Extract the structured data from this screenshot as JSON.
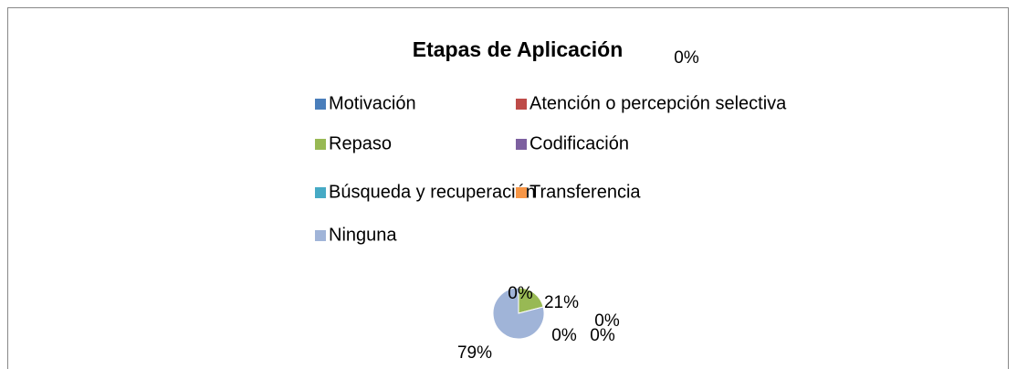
{
  "chart_data": {
    "type": "pie",
    "title": "Etapas de Aplicación",
    "categories": [
      "Motivación",
      "Atención o percepción selectiva",
      "Repaso",
      "Codificación",
      "Búsqueda y recuperación",
      "Transferencia",
      "Ninguna"
    ],
    "values": [
      0,
      0,
      21,
      0,
      0,
      0,
      79
    ],
    "value_labels": [
      "0%",
      "0%",
      "21%",
      "0%",
      "0%",
      "0%",
      "79%"
    ],
    "colors": [
      "#4a7ebb",
      "#be4b48",
      "#98b954",
      "#7d60a0",
      "#46aac5",
      "#f79646",
      "#a0b4d8"
    ],
    "legend": "top"
  }
}
